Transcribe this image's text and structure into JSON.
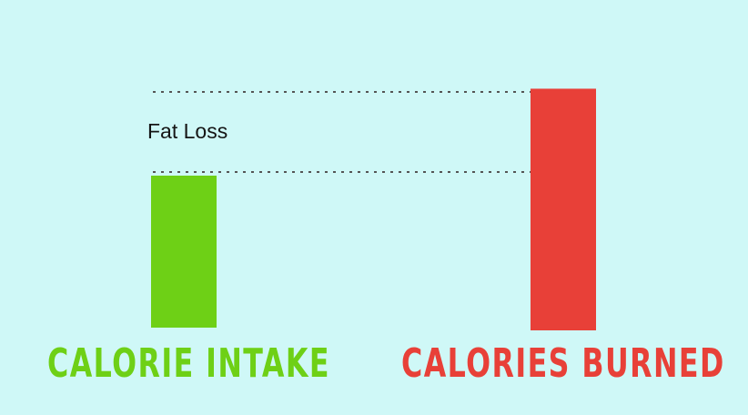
{
  "colors": {
    "background": "#cff8f7",
    "intake": "#6ed016",
    "burned": "#e84038",
    "guide_line": "#555555"
  },
  "chart_data": {
    "type": "bar",
    "categories": [
      "CALORIE INTAKE",
      "CALORIES BURNED"
    ],
    "values": [
      100,
      159
    ],
    "value_scale": "relative bar heights (no axis printed)",
    "annotation": "Fat Loss",
    "guide_lines": "dotted lines at top of each bar",
    "grid": false,
    "legend": "none"
  }
}
